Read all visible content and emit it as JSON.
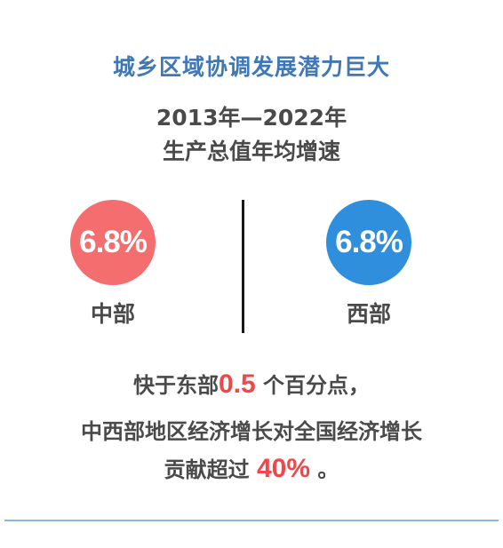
{
  "title": "城乡区域协调发展潜力巨大",
  "period": "2013年—2022年",
  "metric": "生产总值年均增速",
  "regions": [
    {
      "value": "6.8%",
      "name": "中部",
      "color": "#f46d6f"
    },
    {
      "value": "6.8%",
      "name": "西部",
      "color": "#2f8fdc"
    }
  ],
  "summary": {
    "line1_prefix": "快于东部",
    "line1_highlight": "0.5",
    "line1_suffix": "个百分点，",
    "line2": "中西部地区经济增长对全国经济增长",
    "line3_prefix": "贡献超过",
    "line3_highlight": "40%",
    "line3_suffix": "。"
  },
  "colors": {
    "title": "#3f78b4",
    "text": "#4a4a4a",
    "highlight": "#f0474a",
    "divider": "#86b8e3"
  }
}
